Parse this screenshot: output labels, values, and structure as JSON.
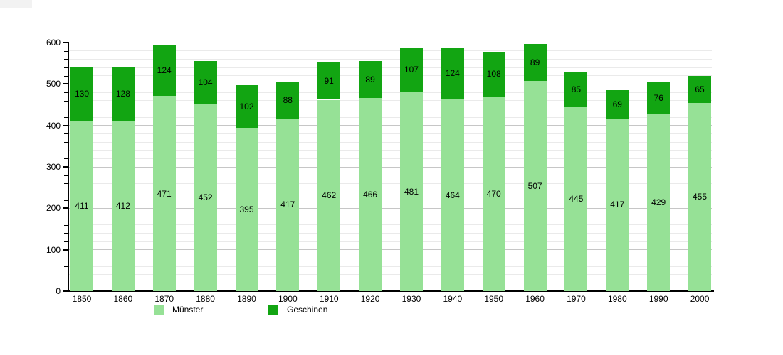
{
  "chart_data": {
    "type": "bar",
    "stacked": true,
    "title": "",
    "xlabel": "",
    "ylabel": "",
    "categories": [
      "1850",
      "1860",
      "1870",
      "1880",
      "1890",
      "1900",
      "1910",
      "1920",
      "1930",
      "1940",
      "1950",
      "1960",
      "1970",
      "1980",
      "1990",
      "2000"
    ],
    "series": [
      {
        "name": "Münster",
        "color": "#96e196",
        "values": [
          411,
          412,
          471,
          452,
          395,
          417,
          462,
          466,
          481,
          464,
          470,
          507,
          445,
          417,
          429,
          455
        ]
      },
      {
        "name": "Geschinen",
        "color": "#12a512",
        "values": [
          130,
          128,
          124,
          104,
          102,
          88,
          91,
          89,
          107,
          124,
          108,
          89,
          85,
          69,
          76,
          65
        ]
      }
    ],
    "ylim": [
      0,
      600
    ],
    "y_major_step": 100,
    "y_minor_step": 20,
    "y_tick_labels": [
      "0",
      "100",
      "200",
      "300",
      "400",
      "500",
      "600"
    ],
    "grid": true,
    "legend_position": "bottom"
  },
  "legend": {
    "items": [
      {
        "label": "Münster",
        "color": "#96e196"
      },
      {
        "label": "Geschinen",
        "color": "#12a512"
      }
    ]
  },
  "colors": {
    "background": "#ffffff",
    "axis": "#000000",
    "text": "#000000",
    "grid_major": "#c6c6c6",
    "grid_minor": "#eaeaea",
    "series_light": "#96e196",
    "series_dark": "#12a512"
  }
}
